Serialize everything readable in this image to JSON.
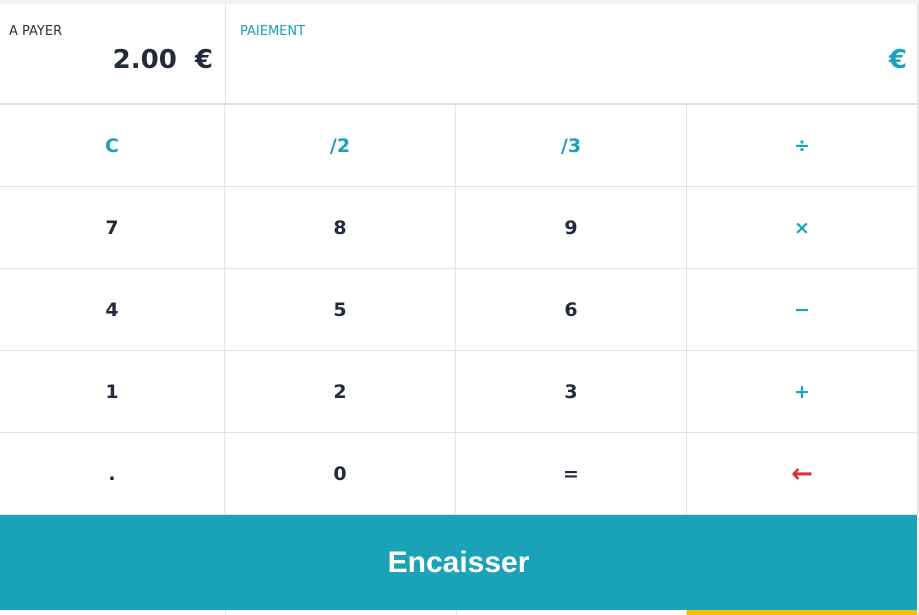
{
  "header": {
    "to_pay_label": "A PAYER",
    "to_pay_amount": "2.00  €",
    "payment_label": "PAIEMENT",
    "payment_currency": "€"
  },
  "keys": [
    {
      "label": "C",
      "style": "t"
    },
    {
      "label": "/2",
      "style": "t"
    },
    {
      "label": "/3",
      "style": "t"
    },
    {
      "label": "÷",
      "style": "t"
    },
    {
      "label": "7"
    },
    {
      "label": "8"
    },
    {
      "label": "9"
    },
    {
      "label": "×",
      "style": "t"
    },
    {
      "label": "4"
    },
    {
      "label": "5"
    },
    {
      "label": "6"
    },
    {
      "label": "−",
      "style": "t"
    },
    {
      "label": "1"
    },
    {
      "label": "2"
    },
    {
      "label": "3"
    },
    {
      "label": "+",
      "style": "t"
    },
    {
      "label": "."
    },
    {
      "label": "0"
    },
    {
      "label": "="
    },
    {
      "label": "←",
      "style": "r",
      "icon": "backspace-arrow-icon"
    }
  ],
  "action": {
    "encaisser_label": "Encaisser"
  },
  "colors": {
    "accent": "#19a2b8",
    "danger": "#d9333f",
    "highlight": "#f5c000"
  }
}
